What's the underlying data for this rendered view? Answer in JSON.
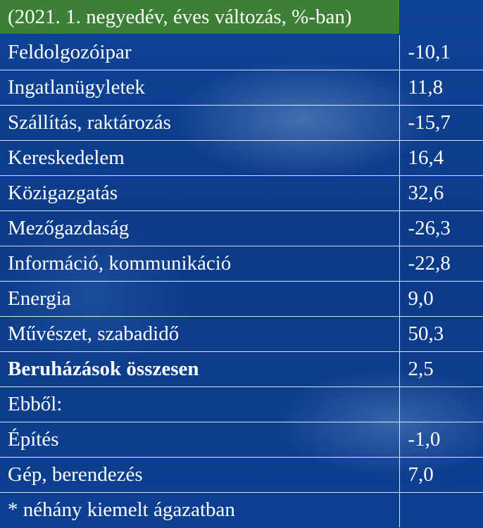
{
  "subtitle": "(2021. 1. negyedév, éves változás, %-ban)",
  "rows": [
    {
      "label": "Feldolgozóipar",
      "value": "-10,1"
    },
    {
      "label": "Ingatlanügyletek",
      "value": "11,8"
    },
    {
      "label": "Szállítás, raktározás",
      "value": "-15,7"
    },
    {
      "label": "Kereskedelem",
      "value": "16,4"
    },
    {
      "label": "Közigazgatás",
      "value": "32,6"
    },
    {
      "label": "Mezőgazdaság",
      "value": "-26,3"
    },
    {
      "label": "Információ, kommunikáció",
      "value": "-22,8"
    },
    {
      "label": "Energia",
      "value": "9,0"
    },
    {
      "label": "Művészet, szabadidő",
      "value": "50,3"
    },
    {
      "label": "Beruházások összesen",
      "value": "2,5"
    },
    {
      "label": "Ebből:",
      "value": ""
    },
    {
      "label": "Építés",
      "value": "-1,0"
    },
    {
      "label": "Gép, berendezés",
      "value": "7,0"
    }
  ],
  "footnote": "* néhány kiemelt ágazatban",
  "colors": {
    "header_green": "#3e7f37",
    "background_blue": "#0d3c8c",
    "text": "#ffffff"
  }
}
